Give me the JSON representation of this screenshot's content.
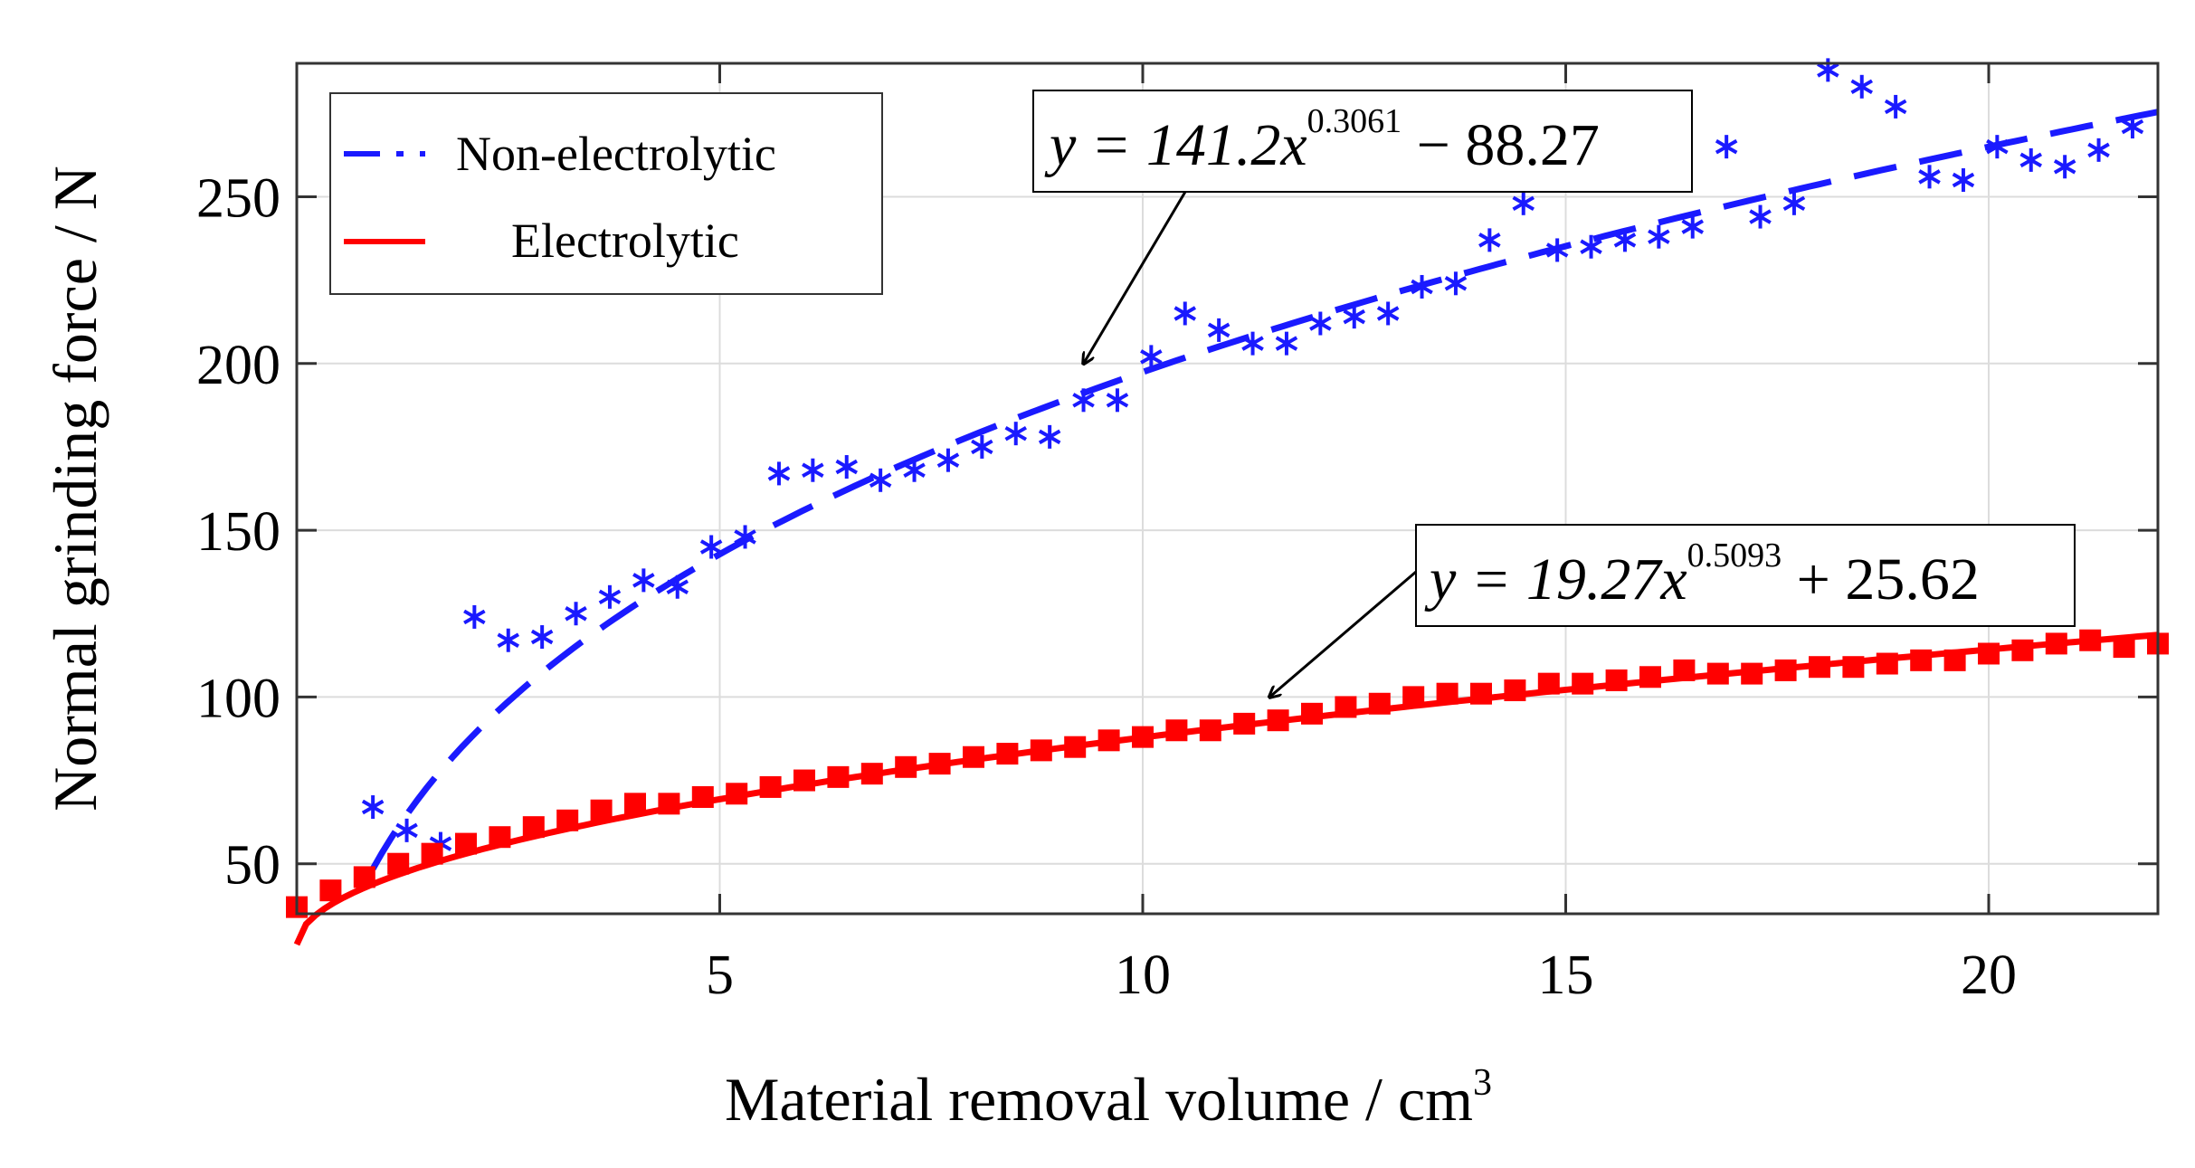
{
  "chart_data": {
    "type": "scatter",
    "title": "",
    "xlabel": "Material removal volume / cm",
    "xlabel_superscript": "3",
    "ylabel": "Normal grinding force / N",
    "xlim": [
      0.0,
      22.0
    ],
    "ylim": [
      35,
      290
    ],
    "xticks": [
      5,
      10,
      15,
      20
    ],
    "yticks": [
      50,
      100,
      150,
      200,
      250
    ],
    "grid": true,
    "legend": {
      "location": "top-left",
      "entries": [
        {
          "label": "Non-electrolytic",
          "color": "#1a1aff",
          "style": "dash-dot"
        },
        {
          "label": "Electrolytic",
          "color": "#ff0000",
          "style": "solid"
        }
      ]
    },
    "series": [
      {
        "name": "Non-electrolytic",
        "marker": "asterisk",
        "color": "#1a1aff",
        "x": [
          0.9,
          1.3,
          1.7,
          2.1,
          2.5,
          2.9,
          3.3,
          3.7,
          4.1,
          4.5,
          4.9,
          5.3,
          5.7,
          6.1,
          6.5,
          6.9,
          7.3,
          7.7,
          8.1,
          8.5,
          8.9,
          9.3,
          9.7,
          10.1,
          10.5,
          10.9,
          11.3,
          11.7,
          12.1,
          12.5,
          12.9,
          13.3,
          13.7,
          14.1,
          14.5,
          14.9,
          15.3,
          15.7,
          16.1,
          16.5,
          16.9,
          17.3,
          17.7,
          18.1,
          18.5,
          18.9,
          19.3,
          19.7,
          20.1,
          20.5,
          20.9,
          21.3,
          21.7
        ],
        "y": [
          67,
          60,
          56,
          124,
          117,
          118,
          125,
          130,
          135,
          133,
          145,
          148,
          167,
          168,
          169,
          165,
          168,
          171,
          175,
          179,
          178,
          189,
          189,
          202,
          215,
          210,
          206,
          206,
          212,
          214,
          215,
          223,
          224,
          237,
          248,
          234,
          235,
          237,
          238,
          241,
          265,
          244,
          248,
          288,
          283,
          277,
          256,
          255,
          265,
          261,
          259,
          264,
          271
        ]
      },
      {
        "name": "Electrolytic",
        "marker": "square",
        "color": "#ff0000",
        "x": [
          0.0,
          0.4,
          0.8,
          1.2,
          1.6,
          2.0,
          2.4,
          2.8,
          3.2,
          3.6,
          4.0,
          4.4,
          4.8,
          5.2,
          5.6,
          6.0,
          6.4,
          6.8,
          7.2,
          7.6,
          8.0,
          8.4,
          8.8,
          9.2,
          9.6,
          10.0,
          10.4,
          10.8,
          11.2,
          11.6,
          12.0,
          12.4,
          12.8,
          13.2,
          13.6,
          14.0,
          14.4,
          14.8,
          15.2,
          15.6,
          16.0,
          16.4,
          16.8,
          17.2,
          17.6,
          18.0,
          18.4,
          18.8,
          19.2,
          19.6,
          20.0,
          20.4,
          20.8,
          21.2,
          21.6,
          22.0
        ],
        "y": [
          37,
          42,
          46,
          50,
          53,
          56,
          58,
          61,
          63,
          66,
          68,
          68,
          70,
          71,
          73,
          75,
          76,
          77,
          79,
          80,
          82,
          83,
          84,
          85,
          87,
          88,
          90,
          90,
          92,
          93,
          95,
          97,
          98,
          100,
          101,
          101,
          102,
          104,
          104,
          105,
          106,
          108,
          107,
          107,
          108,
          109,
          109,
          110,
          111,
          111,
          113,
          114,
          116,
          117,
          115,
          116
        ]
      }
    ],
    "fits": [
      {
        "series": "Non-electrolytic",
        "a": 141.2,
        "b": 0.3061,
        "c": -88.27,
        "x_range": [
          0.9,
          22.0
        ],
        "color": "#1a1aff",
        "style": "dashed"
      },
      {
        "series": "Electrolytic",
        "a": 19.27,
        "b": 0.5093,
        "c": 25.62,
        "x_range": [
          0.0,
          22.0
        ],
        "color": "#ff0000",
        "style": "solid"
      }
    ],
    "annotations": [
      {
        "series": "Non-electrolytic",
        "eq_prefix": "y = 141.2x",
        "eq_exponent": "0.3061",
        "eq_suffix": " − 88.27",
        "arrow_target": [
          9.3,
          200
        ]
      },
      {
        "series": "Electrolytic",
        "eq_prefix": "y = 19.27x",
        "eq_exponent": "0.5093",
        "eq_suffix": " + 25.62",
        "arrow_target": [
          11.5,
          100
        ]
      }
    ]
  }
}
